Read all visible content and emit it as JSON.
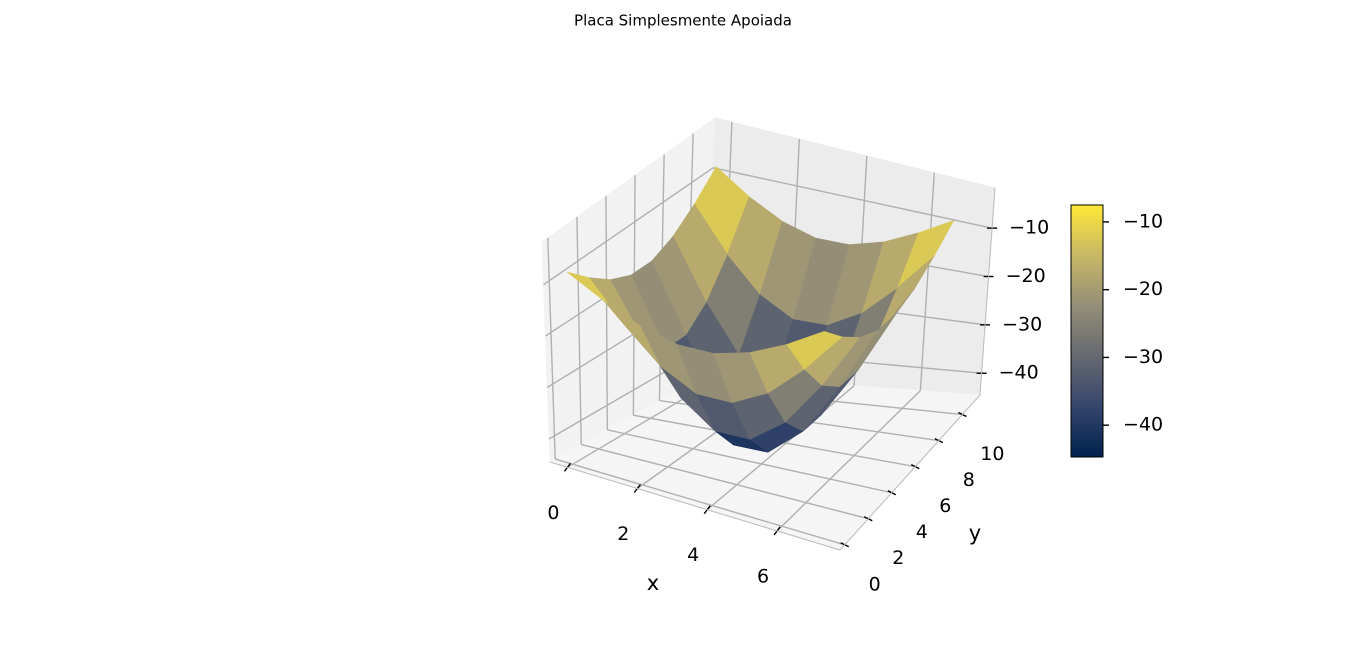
{
  "chart_data": {
    "type": "surface3d",
    "title": "Placa Simplesmente Apoiada",
    "xlabel": "x",
    "ylabel": "y",
    "x": [
      0,
      1,
      2,
      3,
      4,
      5,
      6,
      7
    ],
    "y": [
      0,
      1.5,
      3,
      4.5,
      6,
      7.5,
      9,
      10.5
    ],
    "z": [
      [
        -7.5,
        -11.4,
        -14.5,
        -16.3,
        -16.3,
        -14.5,
        -11.4,
        -7.5
      ],
      [
        -11.4,
        -18.9,
        -24.9,
        -28.3,
        -28.3,
        -24.9,
        -18.9,
        -11.4
      ],
      [
        -14.5,
        -24.9,
        -33.3,
        -38.0,
        -38.0,
        -33.3,
        -24.9,
        -14.5
      ],
      [
        -16.3,
        -28.3,
        -38.0,
        -43.3,
        -43.3,
        -38.0,
        -28.3,
        -16.3
      ],
      [
        -16.3,
        -28.3,
        -38.0,
        -43.3,
        -43.3,
        -38.0,
        -28.3,
        -16.3
      ],
      [
        -14.5,
        -24.9,
        -33.3,
        -38.0,
        -38.0,
        -33.3,
        -24.9,
        -14.5
      ],
      [
        -11.4,
        -18.9,
        -24.9,
        -28.3,
        -28.3,
        -24.9,
        -18.9,
        -11.4
      ],
      [
        -7.5,
        -11.4,
        -14.5,
        -16.3,
        -16.3,
        -14.5,
        -11.4,
        -7.5
      ]
    ],
    "xlim": [
      -0.5,
      7.8
    ],
    "ylim": [
      -0.4,
      11.5
    ],
    "zlim": [
      -44.5,
      -1.7
    ],
    "xticks": [
      0,
      2,
      4,
      6
    ],
    "yticks": [
      0,
      2,
      4,
      6,
      8,
      10
    ],
    "zticks": [
      {
        "value": -40,
        "label": "−40"
      },
      {
        "value": -30,
        "label": "−30"
      },
      {
        "value": -20,
        "label": "−20"
      },
      {
        "value": -10,
        "label": "−10"
      }
    ],
    "colormap": [
      "#00224e",
      "#35456c",
      "#666970",
      "#948e77",
      "#c8b866",
      "#fee838"
    ],
    "clim": [
      -44.7,
      -7.5
    ],
    "cticks": [
      {
        "value": -40,
        "label": "−40"
      },
      {
        "value": -30,
        "label": "−30"
      },
      {
        "value": -20,
        "label": "−20"
      },
      {
        "value": -10,
        "label": "−10"
      }
    ],
    "grid": true
  }
}
